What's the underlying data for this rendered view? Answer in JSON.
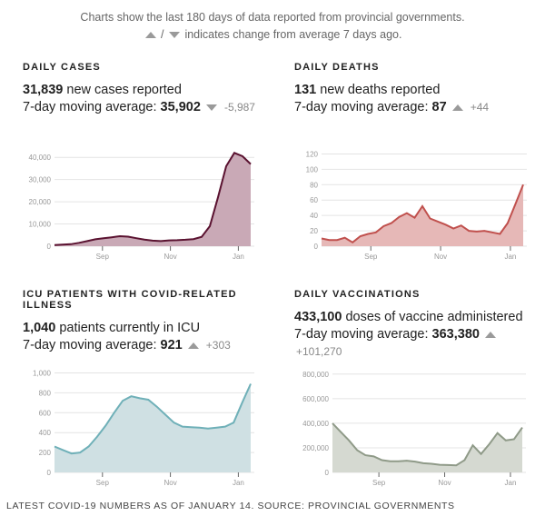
{
  "intro": {
    "line1": "Charts show the last 180 days of data reported from provincial governments.",
    "line2_sep": "/",
    "line2_text": "indicates change from average 7 days ago."
  },
  "panels": [
    {
      "title": "DAILY CASES",
      "value": "31,839",
      "value_text": "new cases reported",
      "avg_label": "7-day moving average:",
      "avg_value": "35,902",
      "direction": "down",
      "change": "-5,987"
    },
    {
      "title": "DAILY DEATHS",
      "value": "131",
      "value_text": "new deaths reported",
      "avg_label": "7-day moving average:",
      "avg_value": "87",
      "direction": "up",
      "change": "+44"
    },
    {
      "title": "ICU PATIENTS WITH COVID-RELATED ILLNESS",
      "value": "1,040",
      "value_text": "patients currently in ICU",
      "avg_label": "7-day moving average:",
      "avg_value": "921",
      "direction": "up",
      "change": "+303"
    },
    {
      "title": "DAILY VACCINATIONS",
      "value": "433,100",
      "value_text": "doses of vaccine administered",
      "avg_label": "7-day moving average:",
      "avg_value": "363,380",
      "direction": "up",
      "change": "+101,270"
    }
  ],
  "footer": "LATEST COVID-19 NUMBERS AS OF JANUARY 14. SOURCE: PROVINCIAL GOVERNMENTS",
  "chart_data": [
    {
      "type": "area",
      "title": "Daily cases",
      "xlabel": "",
      "ylabel": "",
      "x_ticks": [
        "Sep",
        "Nov",
        "Jan"
      ],
      "y_ticks": [
        "0",
        "10,000",
        "20,000",
        "30,000",
        "40,000"
      ],
      "ylim": [
        0,
        45000
      ],
      "grid": true,
      "line_color": "#5a1230",
      "fill_color": "#c9a9b6",
      "series": [
        {
          "name": "7-day moving average",
          "values": [
            500,
            700,
            900,
            1500,
            2300,
            3100,
            3600,
            4000,
            4500,
            4300,
            3600,
            3000,
            2500,
            2300,
            2600,
            2700,
            2900,
            3200,
            4200,
            9000,
            22000,
            36000,
            42000,
            40500,
            37000
          ]
        }
      ]
    },
    {
      "type": "area",
      "title": "Daily deaths",
      "xlabel": "",
      "ylabel": "",
      "x_ticks": [
        "Sep",
        "Nov",
        "Jan"
      ],
      "y_ticks": [
        "0",
        "20",
        "40",
        "60",
        "80",
        "100",
        "120"
      ],
      "ylim": [
        0,
        130
      ],
      "grid": true,
      "line_color": "#c0504d",
      "fill_color": "#e6b8b7",
      "series": [
        {
          "name": "7-day moving average",
          "values": [
            10,
            8,
            8,
            11,
            5,
            13,
            16,
            18,
            26,
            30,
            38,
            43,
            37,
            52,
            36,
            32,
            28,
            23,
            27,
            20,
            19,
            20,
            18,
            16,
            30,
            55,
            80
          ]
        }
      ]
    },
    {
      "type": "area",
      "title": "ICU patients with COVID-related illness",
      "xlabel": "",
      "ylabel": "",
      "x_ticks": [
        "Sep",
        "Nov",
        "Jan"
      ],
      "y_ticks": [
        "0",
        "200",
        "400",
        "600",
        "800",
        "1,000"
      ],
      "ylim": [
        0,
        1050
      ],
      "grid": true,
      "line_color": "#6fb0b8",
      "fill_color": "#cfe0e3",
      "series": [
        {
          "name": "7-day moving average",
          "values": [
            260,
            225,
            190,
            200,
            260,
            360,
            470,
            600,
            720,
            765,
            745,
            730,
            660,
            580,
            500,
            460,
            455,
            450,
            440,
            450,
            460,
            500,
            700,
            890
          ]
        }
      ]
    },
    {
      "type": "area",
      "title": "Daily vaccinations",
      "xlabel": "",
      "ylabel": "",
      "x_ticks": [
        "Sep",
        "Nov",
        "Jan"
      ],
      "y_ticks": [
        "0",
        "200,000",
        "400,000",
        "600,000",
        "800,000"
      ],
      "ylim": [
        0,
        850000
      ],
      "grid": true,
      "line_color": "#8f9a88",
      "fill_color": "#d5d9d1",
      "series": [
        {
          "name": "7-day moving average",
          "values": [
            400000,
            330000,
            260000,
            180000,
            140000,
            130000,
            100000,
            90000,
            90000,
            95000,
            88000,
            75000,
            70000,
            62000,
            60000,
            58000,
            100000,
            220000,
            150000,
            230000,
            320000,
            260000,
            270000,
            365000
          ]
        }
      ]
    }
  ]
}
